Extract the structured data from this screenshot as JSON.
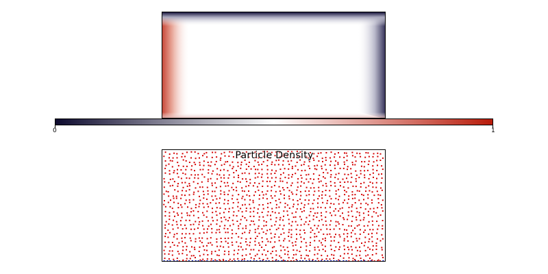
{
  "field_plot": {
    "colormap": [
      "#0d0a2e",
      "#ffffff",
      "#b81b0a"
    ],
    "colormap_stops": [
      0,
      0.5,
      1
    ],
    "colorbar": {
      "min_label": "0",
      "max_label": "1"
    }
  },
  "particle_plot": {
    "title": "Particle Density",
    "particle_color": "#d40000",
    "boundary_particle_color": "#0011aa"
  }
}
